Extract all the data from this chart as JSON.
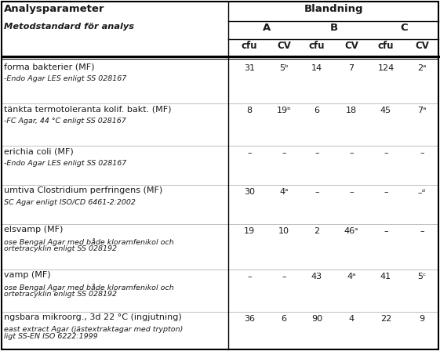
{
  "bg_color": "#ffffff",
  "text_color": "#1a1a1a",
  "rows": [
    {
      "line1": "forma bakterier (MF)",
      "line2": "-Endo Agar LES enligt SS 028167",
      "line2b": "",
      "vals": [
        "31",
        "5ᵇ",
        "14",
        "7",
        "124",
        "2ᵃ"
      ]
    },
    {
      "line1": "tänkta termotoleranta kolif. bakt. (MF)",
      "line2": "-FC Agar, 44 °C enligt SS 028167",
      "line2b": "",
      "vals": [
        "8",
        "19ᵇ",
        "6",
        "18",
        "45",
        "7ᵃ"
      ]
    },
    {
      "line1": "erichia coli (MF)",
      "line2": "-Endo Agar LES enligt SS 028167",
      "line2b": "",
      "vals": [
        "–",
        "–",
        "–",
        "–",
        "–",
        "–"
      ]
    },
    {
      "line1": "umtiva Clostridium perfringens (MF)",
      "line2": "SC Agar enligt ISO/CD 6461-2:2002",
      "line2b": "",
      "vals": [
        "30",
        "4ᵃ",
        "–",
        "–",
        "–",
        "–ᵈ"
      ]
    },
    {
      "line1": "elsvamp (MF)",
      "line2": "ose Bengal Agar med både kloramfenikol och",
      "line2b": "ortetracyklin enligt SS 028192",
      "vals": [
        "19",
        "10",
        "2",
        "46ᵃ",
        "–",
        "–"
      ]
    },
    {
      "line1": "vamp (MF)",
      "line2": "ose Bengal Agar med både kloramfenikol och",
      "line2b": "ortetracyklin enligt SS 028192",
      "vals": [
        "–",
        "–",
        "43",
        "4ᵃ",
        "41",
        "5ᶜ"
      ]
    },
    {
      "line1": "ngsbara mikroorg., 3d 22 °C (ingjutning)",
      "line2": "east extract Agar (jästextraktagar med trypton)",
      "line2b": "ligt SS-EN ISO 6222:1999",
      "vals": [
        "36",
        "6",
        "90",
        "4",
        "22",
        "9"
      ]
    }
  ]
}
